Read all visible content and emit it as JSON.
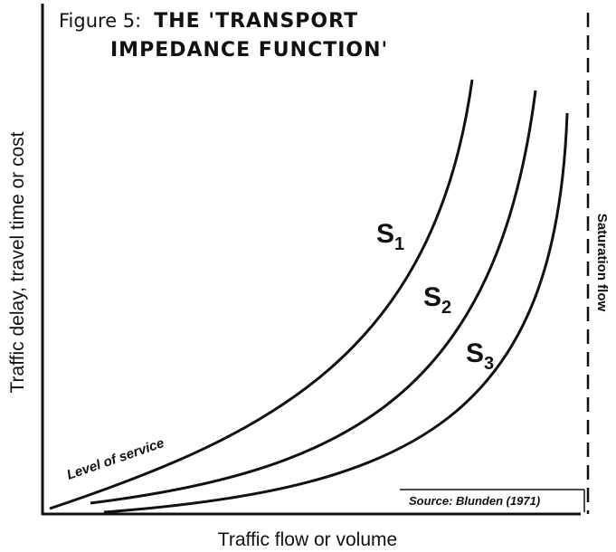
{
  "figure": {
    "label": "Figure 5:",
    "title_lines": [
      "THE 'TRANSPORT",
      "IMPEDANCE FUNCTION'"
    ]
  },
  "curves": [
    {
      "letter": "S",
      "subscript": "1"
    },
    {
      "letter": "S",
      "subscript": "2"
    },
    {
      "letter": "S",
      "subscript": "3"
    }
  ],
  "level_of_service": "Level of service",
  "source": "Source: Blunden (1971)",
  "x_axis_label": "Traffic flow or volume",
  "y_axis_label": "Traffic delay, travel time or cost",
  "saturation_flow": "Saturation flow"
}
